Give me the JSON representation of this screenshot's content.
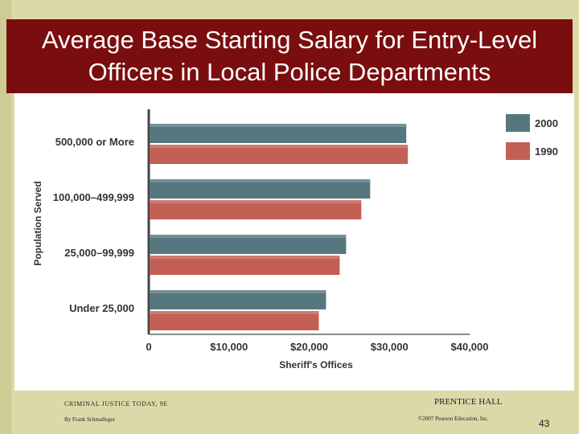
{
  "title": "Average Base Starting Salary for Entry-Level Officers in Local Police Departments",
  "footer": {
    "book": "CRIMINAL JUSTICE TODAY, 9E",
    "author": "By Frank Schmalleger",
    "publisher": "PRENTICE HALL",
    "copyright": "©2007 Pearson Education, Inc.",
    "page": "43"
  },
  "colors": {
    "title_bg": "#7a0d0e",
    "series_2000": "#56777f",
    "series_1990": "#c45f55"
  },
  "chart_data": {
    "type": "bar",
    "orientation": "horizontal",
    "title": "",
    "xlabel": "Sheriff's Offices",
    "ylabel": "Population Served",
    "categories": [
      "500,000 or More",
      "100,000–499,999",
      "25,000–99,999",
      "Under 25,000"
    ],
    "series": [
      {
        "name": "2000",
        "values": [
          32000,
          27500,
          24500,
          22000
        ]
      },
      {
        "name": "1990",
        "values": [
          32200,
          26400,
          23700,
          21100
        ]
      }
    ],
    "xlim": [
      0,
      40000
    ],
    "xticks": [
      0,
      10000,
      20000,
      30000,
      40000
    ],
    "xtick_labels": [
      "0",
      "$10,000",
      "$20,000",
      "$30,000",
      "$40,000"
    ],
    "legend": [
      "2000",
      "1990"
    ],
    "legend_position": "top-right",
    "grid": false
  }
}
